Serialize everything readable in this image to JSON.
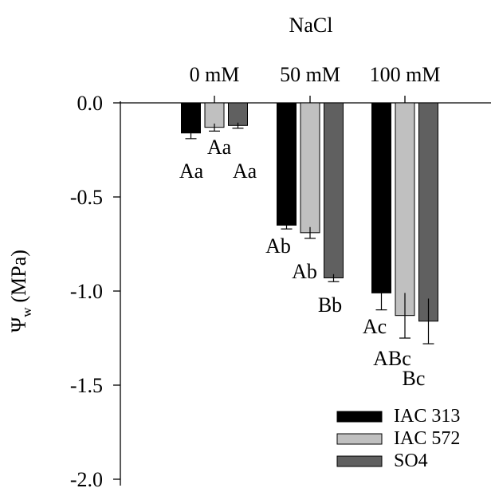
{
  "chart_data": {
    "type": "bar",
    "title": "NaCl",
    "ylabel_main": "Ψ",
    "ylabel_sub": "w",
    "ylabel_unit": "(MPa)",
    "categories": [
      "0 mM",
      "50 mM",
      "100 mM"
    ],
    "ylim": [
      -2.0,
      0.0
    ],
    "yticks": [
      "0.0",
      "-0.5",
      "-1.0",
      "-1.5",
      "-2.0"
    ],
    "grid": false,
    "legend_position": "bottom-right",
    "series": [
      {
        "name": "IAC 313",
        "color": "#000000",
        "values": [
          -0.16,
          -0.65,
          -1.01
        ],
        "errors": [
          0.03,
          0.02,
          0.09
        ],
        "labels": [
          "Aa",
          "Ab",
          "Ac"
        ]
      },
      {
        "name": "IAC 572",
        "color": "#c0c0c0",
        "values": [
          -0.13,
          -0.69,
          -1.13
        ],
        "errors": [
          0.02,
          0.03,
          0.12
        ],
        "labels": [
          "Aa",
          "Ab",
          "ABc"
        ]
      },
      {
        "name": "SO4",
        "color": "#606060",
        "values": [
          -0.12,
          -0.93,
          -1.16
        ],
        "errors": [
          0.015,
          0.02,
          0.12
        ],
        "labels": [
          "Aa",
          "Bb",
          "Bc"
        ]
      }
    ]
  }
}
